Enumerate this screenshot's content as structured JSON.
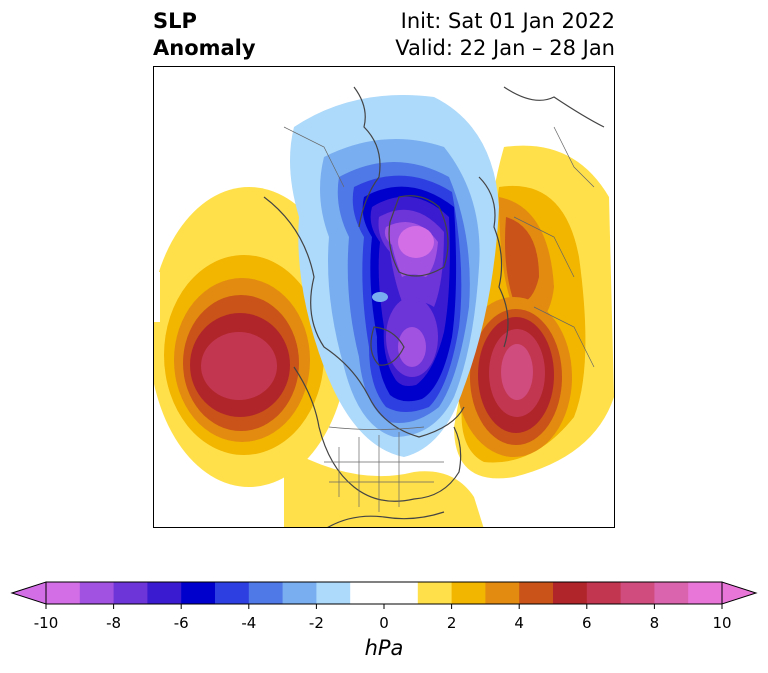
{
  "title": {
    "left_line1": "SLP",
    "left_line2": "Anomaly",
    "right_line1": "Init: Sat 01 Jan 2022",
    "right_line2": "Valid: 22 Jan – 28 Jan"
  },
  "colorbar": {
    "units": "hPa",
    "min": -10,
    "max": 10,
    "step": 1,
    "extend": "both",
    "ticks": [
      "-10",
      "-8",
      "-6",
      "-4",
      "-2",
      "0",
      "2",
      "4",
      "6",
      "8",
      "10"
    ],
    "colors": [
      "#d36ee6",
      "#a152e0",
      "#6d34d8",
      "#3b1bd0",
      "#0000cc",
      "#2d3fe0",
      "#4f79e6",
      "#79aef0",
      "#add9fa",
      "#ffffff",
      "#ffffff",
      "#ffe04a",
      "#f2b500",
      "#e28b10",
      "#c95318",
      "#b0252a",
      "#c23650",
      "#d04c7e",
      "#db64ae",
      "#e875d8"
    ],
    "under_color": "#d36ee6",
    "over_color": "#e875d8"
  },
  "map": {
    "projection": "north-polar-stereographic",
    "field": "sea level pressure anomaly"
  }
}
